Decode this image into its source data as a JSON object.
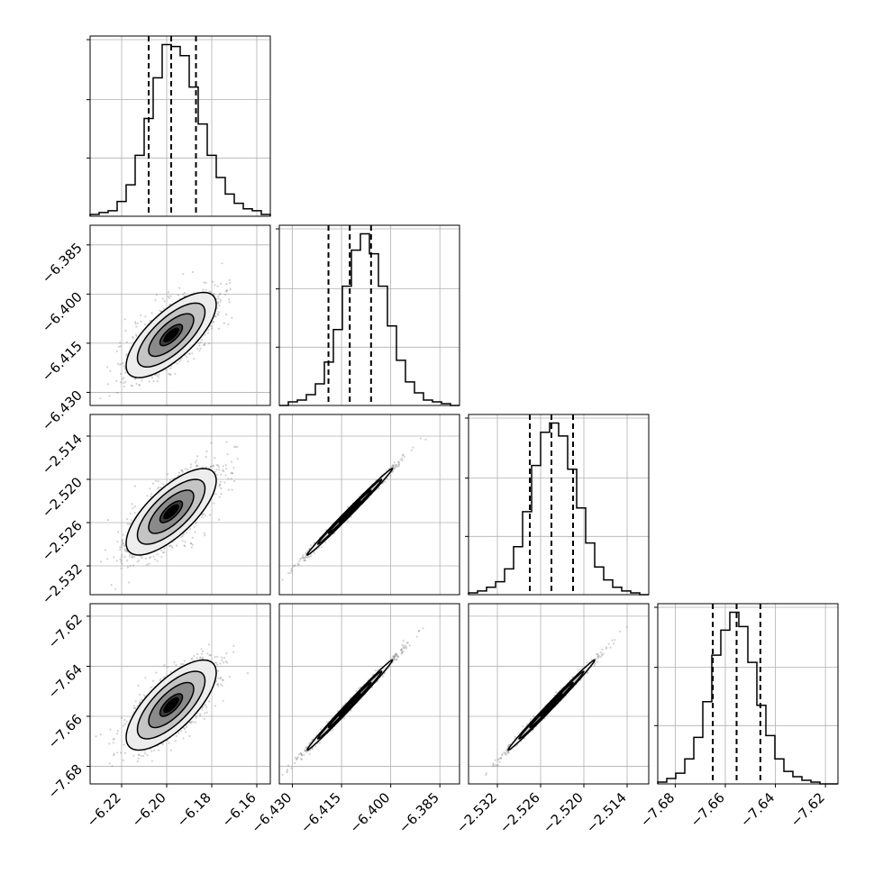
{
  "chart_data": {
    "type": "corner",
    "parameters": [
      {
        "ticks": [
          "−6.22",
          "−6.20",
          "−6.18",
          "−6.16"
        ],
        "tick_values": [
          -6.22,
          -6.2,
          -6.18,
          -6.16
        ],
        "range": [
          -6.234,
          -6.154
        ],
        "center": -6.198,
        "sigma": 0.01,
        "quantiles": [
          -6.208,
          -6.198,
          -6.187
        ]
      },
      {
        "ticks": [
          "−6.430",
          "−6.415",
          "−6.400",
          "−6.385"
        ],
        "tick_values": [
          -6.43,
          -6.415,
          -6.4,
          -6.385
        ],
        "range": [
          -6.434,
          -6.379
        ],
        "center": -6.4125,
        "sigma": 0.0065,
        "quantiles": [
          -6.419,
          -6.4125,
          -6.406
        ]
      },
      {
        "ticks": [
          "−2.532",
          "−2.526",
          "−2.520",
          "−2.514"
        ],
        "tick_values": [
          -2.532,
          -2.526,
          -2.52,
          -2.514
        ],
        "range": [
          -2.536,
          -2.511
        ],
        "center": -2.5245,
        "sigma": 0.003,
        "quantiles": [
          -2.5275,
          -2.5245,
          -2.5215
        ]
      },
      {
        "ticks": [
          "−7.68",
          "−7.66",
          "−7.64",
          "−7.62"
        ],
        "tick_values": [
          -7.68,
          -7.66,
          -7.64,
          -7.62
        ],
        "range": [
          -7.687,
          -7.615
        ],
        "center": -7.6555,
        "sigma": 0.009,
        "quantiles": [
          -7.665,
          -7.6555,
          -7.646
        ]
      }
    ],
    "histograms": [
      [
        1,
        2,
        3,
        8,
        17,
        33,
        53,
        75,
        93,
        92,
        87,
        70,
        50,
        33,
        21,
        12,
        7,
        4,
        3,
        1
      ],
      [
        0,
        2,
        3,
        6,
        12,
        24,
        42,
        66,
        86,
        95,
        84,
        66,
        44,
        25,
        13,
        7,
        3,
        2,
        1,
        0
      ],
      [
        1,
        2,
        4,
        7,
        14,
        26,
        45,
        70,
        88,
        93,
        86,
        68,
        47,
        28,
        15,
        8,
        4,
        2,
        1,
        0
      ],
      [
        1,
        3,
        6,
        14,
        26,
        46,
        72,
        86,
        96,
        88,
        68,
        44,
        27,
        14,
        7,
        4,
        2,
        1,
        0,
        0
      ]
    ],
    "correlations": {
      "1-0": 0.72,
      "2-0": 0.72,
      "2-1": 0.995,
      "3-0": 0.72,
      "3-1": 0.995,
      "3-2": 0.995
    },
    "quantile_lines": "dashed",
    "contour_levels": [
      0.5,
      1.0,
      1.5,
      2.0
    ],
    "grid": true,
    "colors": {
      "line": "#000000",
      "grid": "#b0b0b0",
      "points": "#7f7f7f",
      "background": "#ffffff"
    }
  }
}
